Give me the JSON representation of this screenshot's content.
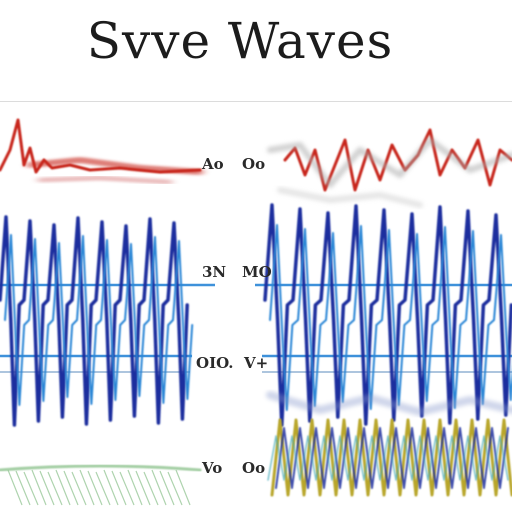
{
  "title": "Svve Waves",
  "labels": [
    {
      "left": "Ao",
      "right": "Oo"
    },
    {
      "left": "3N",
      "right": "MO"
    },
    {
      "left": "OIO.",
      "right": "V+"
    },
    {
      "left": "Vo",
      "right": "Oo"
    }
  ],
  "colors": {
    "red": "#c8281c",
    "navy": "#1f2f9e",
    "sky": "#2a86d6",
    "olive": "#b8a62a",
    "teal": "#3fa8b8",
    "green": "#9ac99a"
  }
}
